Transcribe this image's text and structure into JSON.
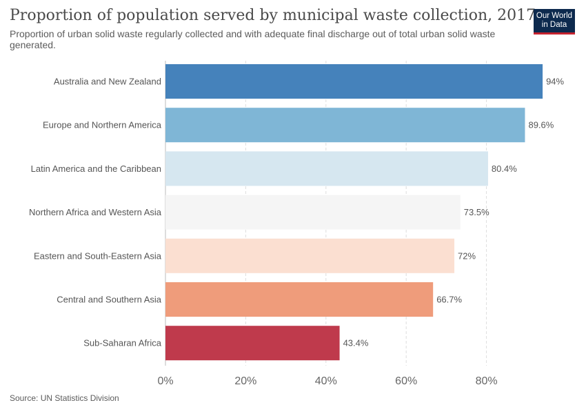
{
  "header": {
    "title": "Proportion of population served by municipal waste collection, 2017",
    "subtitle": "Proportion of urban solid waste regularly collected and with adequate final discharge out of total urban solid waste generated.",
    "logo_line1": "Our World",
    "logo_line2": "in Data"
  },
  "footer": {
    "source": "Source: UN Statistics Division"
  },
  "chart_data": {
    "type": "bar",
    "orientation": "horizontal",
    "title": "Proportion of population served by municipal waste collection, 2017",
    "categories": [
      "Australia and New Zealand",
      "Europe and Northern America",
      "Latin America and the Caribbean",
      "Northern Africa and Western Asia",
      "Eastern and South-Eastern Asia",
      "Central and Southern Asia",
      "Sub-Saharan Africa"
    ],
    "values": [
      94,
      89.6,
      80.4,
      73.5,
      72,
      66.7,
      43.4
    ],
    "value_labels": [
      "94%",
      "89.6%",
      "80.4%",
      "73.5%",
      "72%",
      "66.7%",
      "43.4%"
    ],
    "colors": [
      "#4582bb",
      "#7fb6d6",
      "#d6e7f0",
      "#f5f5f5",
      "#fbdfd1",
      "#ef9c7b",
      "#bf3a4c"
    ],
    "xticks": [
      "0%",
      "20%",
      "40%",
      "60%",
      "80%"
    ],
    "xtick_values": [
      0,
      20,
      40,
      60,
      80
    ],
    "xlim": [
      0,
      100
    ],
    "grid": true
  }
}
